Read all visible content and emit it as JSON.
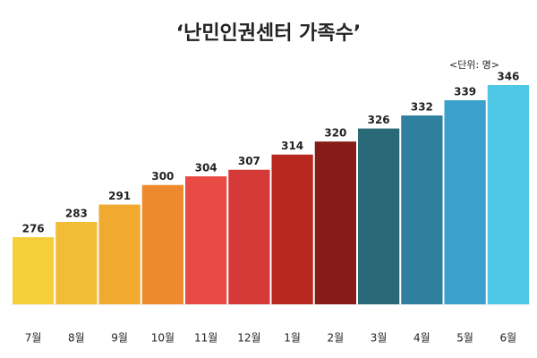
{
  "chart_data": {
    "type": "bar",
    "title": "‘난민인권센터 가족수’",
    "unit_label": "<단위: 명>",
    "categories": [
      "7월",
      "8월",
      "9월",
      "10월",
      "11월",
      "12월",
      "1월",
      "2월",
      "3월",
      "4월",
      "5월",
      "6월"
    ],
    "values": [
      276,
      283,
      291,
      300,
      304,
      307,
      314,
      320,
      326,
      332,
      339,
      346
    ],
    "colors": [
      "#f5cf3a",
      "#f2bc36",
      "#f0aa30",
      "#ee8a2e",
      "#e84a44",
      "#d63a38",
      "#b8281f",
      "#861c17",
      "#2a6a78",
      "#2f7f9f",
      "#3ba0cc",
      "#4fc8e8"
    ],
    "grid": false
  }
}
